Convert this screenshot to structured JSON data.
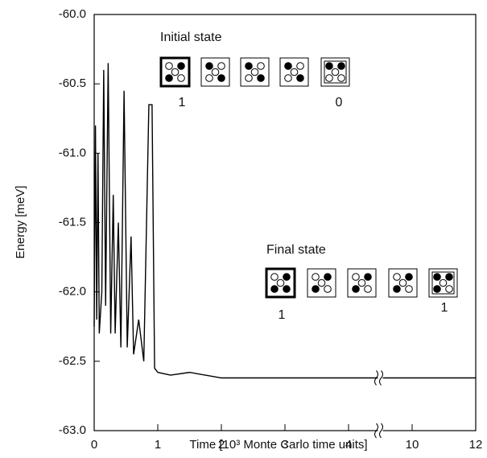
{
  "chart_data": {
    "type": "line",
    "x_label": "Time [10³ Monte Carlo time units]",
    "y_label": "Energy [meV]",
    "annotations": [
      "Initial state",
      "1",
      "0",
      "Final state",
      "1",
      "1"
    ],
    "xlim": [
      0,
      12
    ],
    "x_break": [
      4.5,
      9
    ],
    "xticks": [
      0,
      1,
      2,
      3,
      4,
      10,
      12
    ],
    "ylim": [
      -63,
      -60
    ],
    "yticks": [
      {
        "value": -63,
        "label": "-63.0"
      },
      {
        "value": -62.5,
        "label": "-62.5"
      },
      {
        "value": -62,
        "label": "-62.0"
      },
      {
        "value": -61.5,
        "label": "-61.5"
      },
      {
        "value": -61,
        "label": "-61.0"
      },
      {
        "value": -60.5,
        "label": "-60.5"
      },
      {
        "value": -60,
        "label": "-60.0"
      }
    ],
    "x": [
      0,
      0.02,
      0.04,
      0.06,
      0.08,
      0.12,
      0.15,
      0.18,
      0.22,
      0.26,
      0.3,
      0.33,
      0.38,
      0.42,
      0.47,
      0.52,
      0.58,
      0.62,
      0.7,
      0.78,
      0.86,
      0.91,
      0.95,
      1.0,
      1.2,
      1.5,
      1.75,
      2.0,
      2.5,
      3.0,
      4.5,
      9,
      12
    ],
    "series": [
      {
        "color": "#000000",
        "values": [
          -62.25,
          -60.8,
          -62.2,
          -61.0,
          -62.3,
          -62.0,
          -60.4,
          -62.1,
          -60.35,
          -62.3,
          -61.3,
          -62.3,
          -61.5,
          -62.4,
          -60.55,
          -62.4,
          -61.6,
          -62.45,
          -62.2,
          -62.5,
          -60.65,
          -60.65,
          -62.55,
          -62.58,
          -62.6,
          -62.58,
          -62.6,
          -62.62,
          -62.62,
          -62.62,
          -62.62,
          -62.62,
          -62.62
        ]
      }
    ]
  }
}
